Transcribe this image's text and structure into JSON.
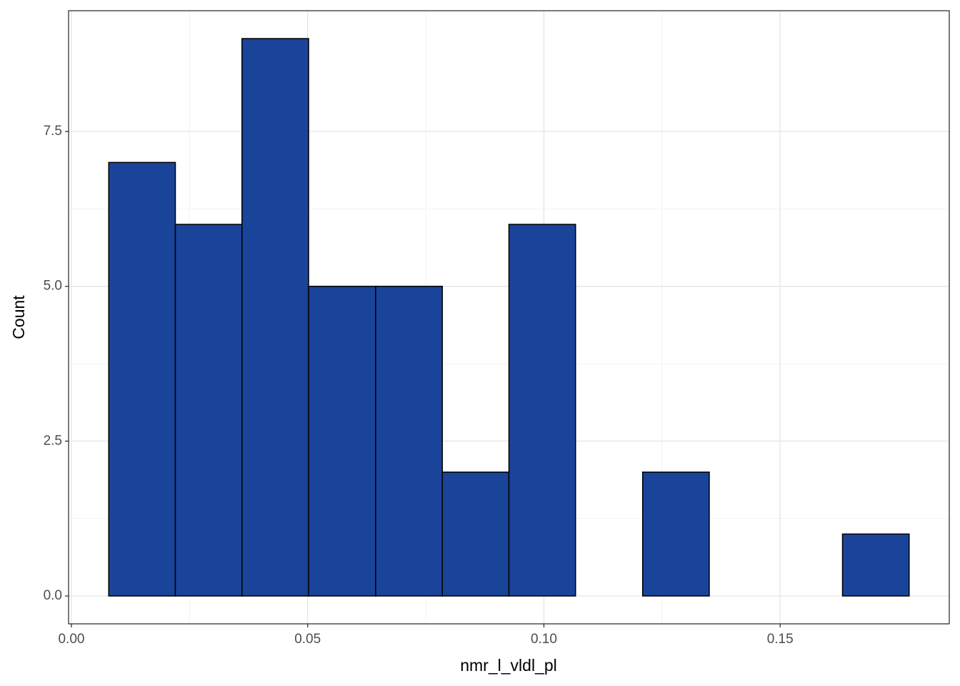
{
  "chart_data": {
    "type": "histogram",
    "x_label": "nmr_l_vldl_pl",
    "y_label": "Count",
    "bins": [
      0.0079,
      0.022,
      0.0361,
      0.0502,
      0.0644,
      0.0785,
      0.0926,
      0.1067,
      0.1209,
      0.135,
      0.1491,
      0.1632,
      0.1773
    ],
    "values": [
      7,
      6,
      9,
      5,
      5,
      2,
      6,
      0,
      2,
      0,
      0,
      1
    ],
    "color": "#1a4499",
    "edge_color": "#000000",
    "xlim": [
      -0.0006,
      0.1858
    ],
    "xticks": [
      {
        "value": 0,
        "label": "0.00"
      },
      {
        "value": 0.05,
        "label": "0.05"
      },
      {
        "value": 0.1,
        "label": "0.10"
      },
      {
        "value": 0.15,
        "label": "0.15"
      }
    ],
    "ylim": [
      -0.45,
      9.45
    ],
    "yticks": [
      {
        "value": 0,
        "label": "0.0"
      },
      2.5,
      {
        "value": 5,
        "label": "5.0"
      },
      7.5
    ],
    "grid": true
  }
}
